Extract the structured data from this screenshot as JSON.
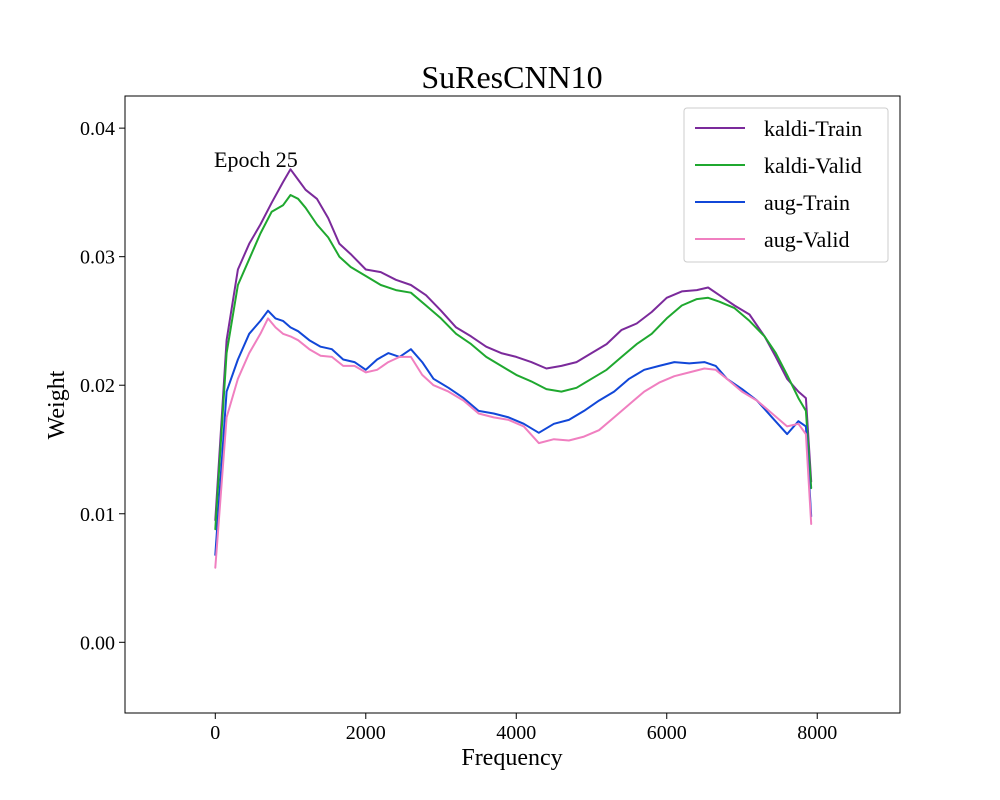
{
  "chart_data": {
    "type": "line",
    "title": "SuResCNN10",
    "xlabel": "Frequency",
    "ylabel": "Weight",
    "annotation": "Epoch 25",
    "xlim": [
      -1200,
      9100
    ],
    "ylim": [
      -0.0055,
      0.0425
    ],
    "xticks": [
      0,
      2000,
      4000,
      6000,
      8000
    ],
    "xtick_labels": [
      "0",
      "2000",
      "4000",
      "6000",
      "8000"
    ],
    "yticks": [
      0.0,
      0.01,
      0.02,
      0.03,
      0.04
    ],
    "ytick_labels": [
      "0.00",
      "0.01",
      "0.02",
      "0.03",
      "0.04"
    ],
    "grid": false,
    "legend_position": "top-right",
    "series": [
      {
        "name": "kaldi-Train",
        "color": "#7b2a9b",
        "x": [
          0,
          150,
          300,
          450,
          600,
          750,
          900,
          1000,
          1100,
          1200,
          1350,
          1500,
          1650,
          1800,
          2000,
          2200,
          2400,
          2600,
          2800,
          3000,
          3200,
          3400,
          3600,
          3800,
          4000,
          4200,
          4400,
          4600,
          4800,
          5000,
          5200,
          5400,
          5600,
          5800,
          6000,
          6200,
          6400,
          6550,
          6700,
          6900,
          7100,
          7300,
          7450,
          7600,
          7750,
          7850,
          7920
        ],
        "y": [
          0.0095,
          0.0235,
          0.029,
          0.031,
          0.0325,
          0.0342,
          0.0358,
          0.0368,
          0.036,
          0.0352,
          0.0345,
          0.033,
          0.031,
          0.0302,
          0.029,
          0.0288,
          0.0282,
          0.0278,
          0.027,
          0.0258,
          0.0245,
          0.0238,
          0.023,
          0.0225,
          0.0222,
          0.0218,
          0.0213,
          0.0215,
          0.0218,
          0.0225,
          0.0232,
          0.0243,
          0.0248,
          0.0257,
          0.0268,
          0.0273,
          0.0274,
          0.0276,
          0.027,
          0.0262,
          0.0255,
          0.0238,
          0.0222,
          0.0205,
          0.0195,
          0.019,
          0.0125
        ]
      },
      {
        "name": "kaldi-Valid",
        "color": "#1fa82f",
        "x": [
          0,
          150,
          300,
          450,
          600,
          750,
          900,
          1000,
          1100,
          1200,
          1350,
          1500,
          1650,
          1800,
          2000,
          2200,
          2400,
          2600,
          2800,
          3000,
          3200,
          3400,
          3600,
          3800,
          4000,
          4200,
          4400,
          4600,
          4800,
          5000,
          5200,
          5400,
          5600,
          5800,
          6000,
          6200,
          6400,
          6550,
          6700,
          6900,
          7100,
          7300,
          7450,
          7600,
          7750,
          7850,
          7920
        ],
        "y": [
          0.0088,
          0.0225,
          0.0278,
          0.0298,
          0.0318,
          0.0335,
          0.034,
          0.0348,
          0.0345,
          0.0338,
          0.0325,
          0.0315,
          0.03,
          0.0292,
          0.0285,
          0.0278,
          0.0274,
          0.0272,
          0.0262,
          0.0252,
          0.024,
          0.0232,
          0.0222,
          0.0215,
          0.0208,
          0.0203,
          0.0197,
          0.0195,
          0.0198,
          0.0205,
          0.0212,
          0.0222,
          0.0232,
          0.024,
          0.0252,
          0.0262,
          0.0267,
          0.0268,
          0.0265,
          0.026,
          0.025,
          0.0238,
          0.0225,
          0.0208,
          0.019,
          0.018,
          0.012
        ]
      },
      {
        "name": "aug-Train",
        "color": "#1147d8",
        "x": [
          0,
          150,
          300,
          450,
          600,
          700,
          800,
          900,
          1000,
          1100,
          1250,
          1400,
          1550,
          1700,
          1850,
          2000,
          2150,
          2300,
          2450,
          2600,
          2750,
          2900,
          3100,
          3300,
          3500,
          3700,
          3900,
          4100,
          4300,
          4500,
          4700,
          4900,
          5100,
          5300,
          5500,
          5700,
          5900,
          6100,
          6300,
          6500,
          6650,
          6800,
          7000,
          7200,
          7400,
          7600,
          7750,
          7850,
          7920
        ],
        "y": [
          0.0068,
          0.0195,
          0.022,
          0.024,
          0.025,
          0.0258,
          0.0252,
          0.025,
          0.0245,
          0.0242,
          0.0235,
          0.023,
          0.0228,
          0.022,
          0.0218,
          0.0212,
          0.022,
          0.0225,
          0.0222,
          0.0228,
          0.0218,
          0.0205,
          0.0198,
          0.019,
          0.018,
          0.0178,
          0.0175,
          0.017,
          0.0163,
          0.017,
          0.0173,
          0.018,
          0.0188,
          0.0195,
          0.0205,
          0.0212,
          0.0215,
          0.0218,
          0.0217,
          0.0218,
          0.0215,
          0.0205,
          0.0197,
          0.0188,
          0.0175,
          0.0162,
          0.0172,
          0.0168,
          0.0098
        ]
      },
      {
        "name": "aug-Valid",
        "color": "#f07fc0",
        "x": [
          0,
          150,
          300,
          450,
          600,
          700,
          800,
          900,
          1000,
          1100,
          1250,
          1400,
          1550,
          1700,
          1850,
          2000,
          2150,
          2300,
          2450,
          2600,
          2750,
          2900,
          3100,
          3300,
          3500,
          3700,
          3900,
          4100,
          4300,
          4500,
          4700,
          4900,
          5100,
          5300,
          5500,
          5700,
          5900,
          6100,
          6300,
          6500,
          6650,
          6800,
          7000,
          7200,
          7400,
          7600,
          7750,
          7850,
          7920
        ],
        "y": [
          0.0058,
          0.0175,
          0.0205,
          0.0225,
          0.024,
          0.0252,
          0.0245,
          0.024,
          0.0238,
          0.0235,
          0.0228,
          0.0223,
          0.0222,
          0.0215,
          0.0215,
          0.021,
          0.0212,
          0.0218,
          0.0222,
          0.0222,
          0.0208,
          0.02,
          0.0195,
          0.0188,
          0.0178,
          0.0175,
          0.0173,
          0.0168,
          0.0155,
          0.0158,
          0.0157,
          0.016,
          0.0165,
          0.0175,
          0.0185,
          0.0195,
          0.0202,
          0.0207,
          0.021,
          0.0213,
          0.0212,
          0.0205,
          0.0195,
          0.0188,
          0.0178,
          0.0168,
          0.017,
          0.0162,
          0.0092
        ]
      }
    ]
  }
}
